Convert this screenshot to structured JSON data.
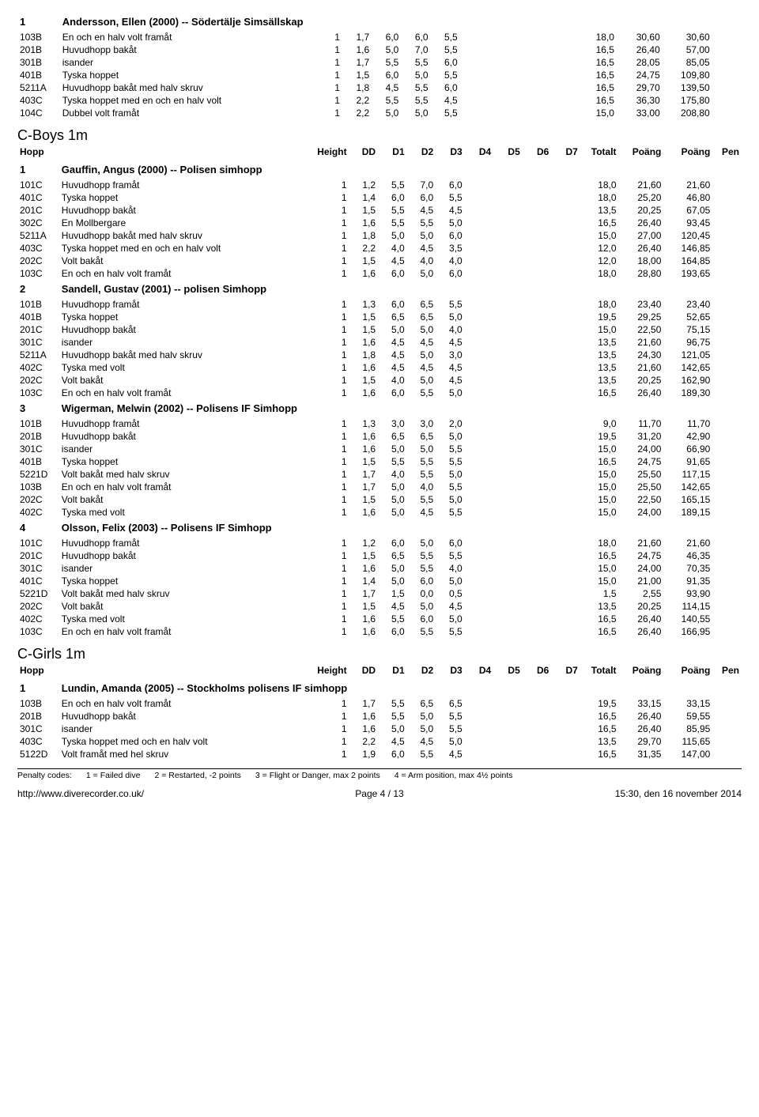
{
  "top": {
    "rank": "1",
    "name": "Andersson, Ellen (2000) -- Södertälje Simsällskap",
    "rows": [
      {
        "code": "103B",
        "desc": "En och en halv volt framåt",
        "h": "1",
        "dd": "1,7",
        "d1": "6,0",
        "d2": "6,0",
        "d3": "5,5",
        "tot": "18,0",
        "p1": "30,60",
        "p2": "30,60"
      },
      {
        "code": "201B",
        "desc": "Huvudhopp bakåt",
        "h": "1",
        "dd": "1,6",
        "d1": "5,0",
        "d2": "7,0",
        "d3": "5,5",
        "tot": "16,5",
        "p1": "26,40",
        "p2": "57,00"
      },
      {
        "code": "301B",
        "desc": "isander",
        "h": "1",
        "dd": "1,7",
        "d1": "5,5",
        "d2": "5,5",
        "d3": "6,0",
        "tot": "16,5",
        "p1": "28,05",
        "p2": "85,05"
      },
      {
        "code": "401B",
        "desc": "Tyska hoppet",
        "h": "1",
        "dd": "1,5",
        "d1": "6,0",
        "d2": "5,0",
        "d3": "5,5",
        "tot": "16,5",
        "p1": "24,75",
        "p2": "109,80"
      },
      {
        "code": "5211A",
        "desc": "Huvudhopp bakåt med halv skruv",
        "h": "1",
        "dd": "1,8",
        "d1": "4,5",
        "d2": "5,5",
        "d3": "6,0",
        "tot": "16,5",
        "p1": "29,70",
        "p2": "139,50"
      },
      {
        "code": "403C",
        "desc": "Tyska hoppet med en och en halv volt",
        "h": "1",
        "dd": "2,2",
        "d1": "5,5",
        "d2": "5,5",
        "d3": "4,5",
        "tot": "16,5",
        "p1": "36,30",
        "p2": "175,80"
      },
      {
        "code": "104C",
        "desc": "Dubbel volt framåt",
        "h": "1",
        "dd": "2,2",
        "d1": "5,0",
        "d2": "5,0",
        "d3": "5,5",
        "tot": "15,0",
        "p1": "33,00",
        "p2": "208,80"
      }
    ]
  },
  "boys": {
    "title": "C-Boys 1m",
    "headers": [
      "Hopp",
      "Height",
      "DD",
      "D1",
      "D2",
      "D3",
      "D4",
      "D5",
      "D6",
      "D7",
      "Totalt",
      "Poäng",
      "Poäng",
      "Pen"
    ],
    "groups": [
      {
        "rank": "1",
        "name": "Gauffin, Angus (2000) -- Polisen simhopp",
        "rows": [
          {
            "code": "101C",
            "desc": "Huvudhopp framåt",
            "h": "1",
            "dd": "1,2",
            "d1": "5,5",
            "d2": "7,0",
            "d3": "6,0",
            "tot": "18,0",
            "p1": "21,60",
            "p2": "21,60"
          },
          {
            "code": "401C",
            "desc": "Tyska hoppet",
            "h": "1",
            "dd": "1,4",
            "d1": "6,0",
            "d2": "6,0",
            "d3": "5,5",
            "tot": "18,0",
            "p1": "25,20",
            "p2": "46,80"
          },
          {
            "code": "201C",
            "desc": "Huvudhopp bakåt",
            "h": "1",
            "dd": "1,5",
            "d1": "5,5",
            "d2": "4,5",
            "d3": "4,5",
            "tot": "13,5",
            "p1": "20,25",
            "p2": "67,05"
          },
          {
            "code": "302C",
            "desc": "En Mollbergare",
            "h": "1",
            "dd": "1,6",
            "d1": "5,5",
            "d2": "5,5",
            "d3": "5,0",
            "tot": "16,5",
            "p1": "26,40",
            "p2": "93,45"
          },
          {
            "code": "5211A",
            "desc": "Huvudhopp bakåt med halv skruv",
            "h": "1",
            "dd": "1,8",
            "d1": "5,0",
            "d2": "5,0",
            "d3": "6,0",
            "tot": "15,0",
            "p1": "27,00",
            "p2": "120,45"
          },
          {
            "code": "403C",
            "desc": "Tyska hoppet med en och en halv volt",
            "h": "1",
            "dd": "2,2",
            "d1": "4,0",
            "d2": "4,5",
            "d3": "3,5",
            "tot": "12,0",
            "p1": "26,40",
            "p2": "146,85"
          },
          {
            "code": "202C",
            "desc": "Volt bakåt",
            "h": "1",
            "dd": "1,5",
            "d1": "4,5",
            "d2": "4,0",
            "d3": "4,0",
            "tot": "12,0",
            "p1": "18,00",
            "p2": "164,85"
          },
          {
            "code": "103C",
            "desc": "En och en halv volt framåt",
            "h": "1",
            "dd": "1,6",
            "d1": "6,0",
            "d2": "5,0",
            "d3": "6,0",
            "tot": "18,0",
            "p1": "28,80",
            "p2": "193,65"
          }
        ]
      },
      {
        "rank": "2",
        "name": "Sandell, Gustav (2001) -- polisen Simhopp",
        "rows": [
          {
            "code": "101B",
            "desc": "Huvudhopp framåt",
            "h": "1",
            "dd": "1,3",
            "d1": "6,0",
            "d2": "6,5",
            "d3": "5,5",
            "tot": "18,0",
            "p1": "23,40",
            "p2": "23,40"
          },
          {
            "code": "401B",
            "desc": "Tyska hoppet",
            "h": "1",
            "dd": "1,5",
            "d1": "6,5",
            "d2": "6,5",
            "d3": "5,0",
            "tot": "19,5",
            "p1": "29,25",
            "p2": "52,65"
          },
          {
            "code": "201C",
            "desc": "Huvudhopp bakåt",
            "h": "1",
            "dd": "1,5",
            "d1": "5,0",
            "d2": "5,0",
            "d3": "4,0",
            "tot": "15,0",
            "p1": "22,50",
            "p2": "75,15"
          },
          {
            "code": "301C",
            "desc": "isander",
            "h": "1",
            "dd": "1,6",
            "d1": "4,5",
            "d2": "4,5",
            "d3": "4,5",
            "tot": "13,5",
            "p1": "21,60",
            "p2": "96,75"
          },
          {
            "code": "5211A",
            "desc": "Huvudhopp bakåt med halv skruv",
            "h": "1",
            "dd": "1,8",
            "d1": "4,5",
            "d2": "5,0",
            "d3": "3,0",
            "tot": "13,5",
            "p1": "24,30",
            "p2": "121,05"
          },
          {
            "code": "402C",
            "desc": "Tyska med volt",
            "h": "1",
            "dd": "1,6",
            "d1": "4,5",
            "d2": "4,5",
            "d3": "4,5",
            "tot": "13,5",
            "p1": "21,60",
            "p2": "142,65"
          },
          {
            "code": "202C",
            "desc": "Volt bakåt",
            "h": "1",
            "dd": "1,5",
            "d1": "4,0",
            "d2": "5,0",
            "d3": "4,5",
            "tot": "13,5",
            "p1": "20,25",
            "p2": "162,90"
          },
          {
            "code": "103C",
            "desc": "En och en halv volt framåt",
            "h": "1",
            "dd": "1,6",
            "d1": "6,0",
            "d2": "5,5",
            "d3": "5,0",
            "tot": "16,5",
            "p1": "26,40",
            "p2": "189,30"
          }
        ]
      },
      {
        "rank": "3",
        "name": "Wigerman, Melwin (2002) -- Polisens IF Simhopp",
        "rows": [
          {
            "code": "101B",
            "desc": "Huvudhopp framåt",
            "h": "1",
            "dd": "1,3",
            "d1": "3,0",
            "d2": "3,0",
            "d3": "2,0",
            "tot": "9,0",
            "p1": "11,70",
            "p2": "11,70"
          },
          {
            "code": "201B",
            "desc": "Huvudhopp bakåt",
            "h": "1",
            "dd": "1,6",
            "d1": "6,5",
            "d2": "6,5",
            "d3": "5,0",
            "tot": "19,5",
            "p1": "31,20",
            "p2": "42,90"
          },
          {
            "code": "301C",
            "desc": "isander",
            "h": "1",
            "dd": "1,6",
            "d1": "5,0",
            "d2": "5,0",
            "d3": "5,5",
            "tot": "15,0",
            "p1": "24,00",
            "p2": "66,90"
          },
          {
            "code": "401B",
            "desc": "Tyska hoppet",
            "h": "1",
            "dd": "1,5",
            "d1": "5,5",
            "d2": "5,5",
            "d3": "5,5",
            "tot": "16,5",
            "p1": "24,75",
            "p2": "91,65"
          },
          {
            "code": "5221D",
            "desc": "Volt bakåt med halv skruv",
            "h": "1",
            "dd": "1,7",
            "d1": "4,0",
            "d2": "5,5",
            "d3": "5,0",
            "tot": "15,0",
            "p1": "25,50",
            "p2": "117,15"
          },
          {
            "code": "103B",
            "desc": "En och en halv volt framåt",
            "h": "1",
            "dd": "1,7",
            "d1": "5,0",
            "d2": "4,0",
            "d3": "5,5",
            "tot": "15,0",
            "p1": "25,50",
            "p2": "142,65"
          },
          {
            "code": "202C",
            "desc": "Volt bakåt",
            "h": "1",
            "dd": "1,5",
            "d1": "5,0",
            "d2": "5,5",
            "d3": "5,0",
            "tot": "15,0",
            "p1": "22,50",
            "p2": "165,15"
          },
          {
            "code": "402C",
            "desc": "Tyska med volt",
            "h": "1",
            "dd": "1,6",
            "d1": "5,0",
            "d2": "4,5",
            "d3": "5,5",
            "tot": "15,0",
            "p1": "24,00",
            "p2": "189,15"
          }
        ]
      },
      {
        "rank": "4",
        "name": "Olsson, Felix (2003) -- Polisens IF Simhopp",
        "rows": [
          {
            "code": "101C",
            "desc": "Huvudhopp framåt",
            "h": "1",
            "dd": "1,2",
            "d1": "6,0",
            "d2": "5,0",
            "d3": "6,0",
            "tot": "18,0",
            "p1": "21,60",
            "p2": "21,60"
          },
          {
            "code": "201C",
            "desc": "Huvudhopp bakåt",
            "h": "1",
            "dd": "1,5",
            "d1": "6,5",
            "d2": "5,5",
            "d3": "5,5",
            "tot": "16,5",
            "p1": "24,75",
            "p2": "46,35"
          },
          {
            "code": "301C",
            "desc": "isander",
            "h": "1",
            "dd": "1,6",
            "d1": "5,0",
            "d2": "5,5",
            "d3": "4,0",
            "tot": "15,0",
            "p1": "24,00",
            "p2": "70,35"
          },
          {
            "code": "401C",
            "desc": "Tyska hoppet",
            "h": "1",
            "dd": "1,4",
            "d1": "5,0",
            "d2": "6,0",
            "d3": "5,0",
            "tot": "15,0",
            "p1": "21,00",
            "p2": "91,35"
          },
          {
            "code": "5221D",
            "desc": "Volt bakåt med halv skruv",
            "h": "1",
            "dd": "1,7",
            "d1": "1,5",
            "d2": "0,0",
            "d3": "0,5",
            "tot": "1,5",
            "p1": "2,55",
            "p2": "93,90"
          },
          {
            "code": "202C",
            "desc": "Volt bakåt",
            "h": "1",
            "dd": "1,5",
            "d1": "4,5",
            "d2": "5,0",
            "d3": "4,5",
            "tot": "13,5",
            "p1": "20,25",
            "p2": "114,15"
          },
          {
            "code": "402C",
            "desc": "Tyska med volt",
            "h": "1",
            "dd": "1,6",
            "d1": "5,5",
            "d2": "6,0",
            "d3": "5,0",
            "tot": "16,5",
            "p1": "26,40",
            "p2": "140,55"
          },
          {
            "code": "103C",
            "desc": "En och en halv volt framåt",
            "h": "1",
            "dd": "1,6",
            "d1": "6,0",
            "d2": "5,5",
            "d3": "5,5",
            "tot": "16,5",
            "p1": "26,40",
            "p2": "166,95"
          }
        ]
      }
    ]
  },
  "girls": {
    "title": "C-Girls 1m",
    "headers": [
      "Hopp",
      "Height",
      "DD",
      "D1",
      "D2",
      "D3",
      "D4",
      "D5",
      "D6",
      "D7",
      "Totalt",
      "Poäng",
      "Poäng",
      "Pen"
    ],
    "groups": [
      {
        "rank": "1",
        "name": "Lundin, Amanda (2005) -- Stockholms polisens IF simhopp",
        "rows": [
          {
            "code": "103B",
            "desc": "En och en halv volt framåt",
            "h": "1",
            "dd": "1,7",
            "d1": "5,5",
            "d2": "6,5",
            "d3": "6,5",
            "tot": "19,5",
            "p1": "33,15",
            "p2": "33,15"
          },
          {
            "code": "201B",
            "desc": "Huvudhopp bakåt",
            "h": "1",
            "dd": "1,6",
            "d1": "5,5",
            "d2": "5,0",
            "d3": "5,5",
            "tot": "16,5",
            "p1": "26,40",
            "p2": "59,55"
          },
          {
            "code": "301C",
            "desc": "isander",
            "h": "1",
            "dd": "1,6",
            "d1": "5,0",
            "d2": "5,0",
            "d3": "5,5",
            "tot": "16,5",
            "p1": "26,40",
            "p2": "85,95"
          },
          {
            "code": "403C",
            "desc": "Tyska hoppet med och en halv volt",
            "h": "1",
            "dd": "2,2",
            "d1": "4,5",
            "d2": "4,5",
            "d3": "5,0",
            "tot": "13,5",
            "p1": "29,70",
            "p2": "115,65"
          },
          {
            "code": "5122D",
            "desc": "Volt framåt med hel skruv",
            "h": "1",
            "dd": "1,9",
            "d1": "6,0",
            "d2": "5,5",
            "d3": "4,5",
            "tot": "16,5",
            "p1": "31,35",
            "p2": "147,00"
          }
        ]
      }
    ]
  },
  "penalty": {
    "label": "Penalty codes:",
    "c1": "1 = Failed dive",
    "c2": "2 = Restarted, -2 points",
    "c3": "3 = Flight or Danger, max 2 points",
    "c4": "4 = Arm position, max 4½ points"
  },
  "footer": {
    "url": "http://www.diverecorder.co.uk/",
    "page": "Page 4 / 13",
    "time": "15:30, den 16 november 2014"
  }
}
